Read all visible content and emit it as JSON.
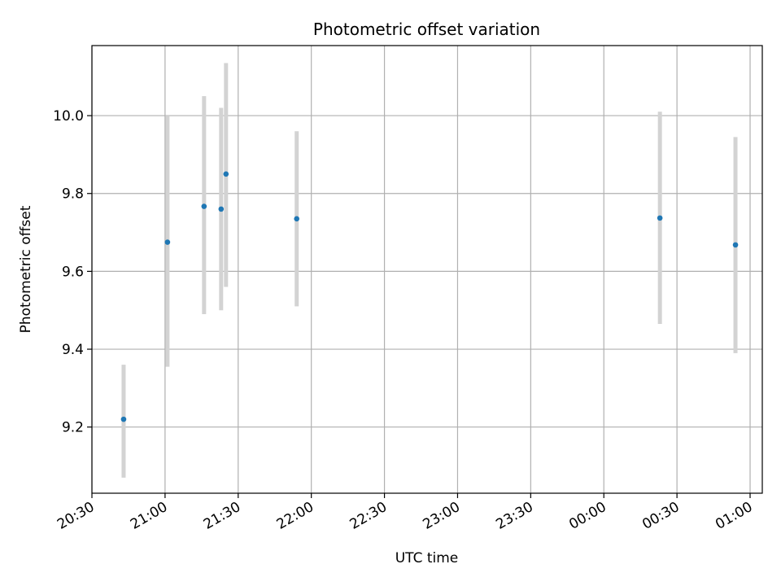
{
  "chart_data": {
    "type": "scatter",
    "title": "Photometric offset variation",
    "xlabel": "UTC time",
    "ylabel": "Photometric offset",
    "grid": true,
    "xlim": [
      "20:30",
      "01:05"
    ],
    "ylim": [
      9.03,
      10.18
    ],
    "x_ticks": [
      "20:30",
      "21:00",
      "21:30",
      "22:00",
      "22:30",
      "23:00",
      "23:30",
      "00:00",
      "00:30",
      "01:00"
    ],
    "y_ticks": [
      "9.2",
      "9.4",
      "9.6",
      "9.8",
      "10.0"
    ],
    "y_tick_values": [
      9.2,
      9.4,
      9.6,
      9.8,
      10.0
    ],
    "point_color": "#1f77b4",
    "errorbar_color": "#d3d3d3",
    "points": [
      {
        "x": "20:43",
        "y": 9.22,
        "ymin": 9.07,
        "ymax": 9.36
      },
      {
        "x": "21:01",
        "y": 9.675,
        "ymin": 9.355,
        "ymax": 10.0
      },
      {
        "x": "21:16",
        "y": 9.767,
        "ymin": 9.49,
        "ymax": 10.05
      },
      {
        "x": "21:23",
        "y": 9.76,
        "ymin": 9.5,
        "ymax": 10.02
      },
      {
        "x": "21:25",
        "y": 9.85,
        "ymin": 9.56,
        "ymax": 10.135
      },
      {
        "x": "21:54",
        "y": 9.735,
        "ymin": 9.51,
        "ymax": 9.96
      },
      {
        "x": "00:23",
        "y": 9.737,
        "ymin": 9.465,
        "ymax": 10.01
      },
      {
        "x": "00:54",
        "y": 9.668,
        "ymin": 9.39,
        "ymax": 9.945
      }
    ]
  }
}
